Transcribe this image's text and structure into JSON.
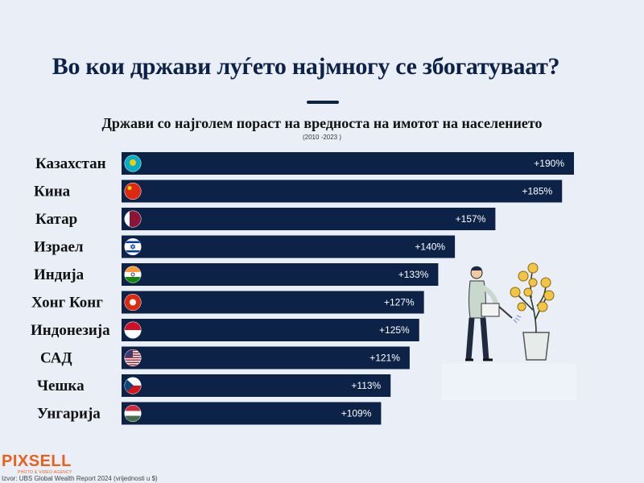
{
  "header": {
    "title": "Во кои држави луѓето најмногу се збогатуваат?",
    "subtitle": "Држави со најголем пораст на вредноста на имотот на населението",
    "period": "(2010 -2023 )"
  },
  "chart_data": {
    "type": "bar",
    "orientation": "horizontal",
    "categories": [
      "Казахстан",
      "Кина",
      "Катар",
      "Израел",
      "Индија",
      "Хонг Конг",
      "Индонезија",
      "САД",
      "Чешка",
      "Унгарија"
    ],
    "values": [
      190,
      185,
      157,
      140,
      133,
      127,
      125,
      121,
      113,
      109
    ],
    "value_labels": [
      "+190%",
      "+185%",
      "+157%",
      "+140%",
      "+133%",
      "+127%",
      "+125%",
      "+121%",
      "+113%",
      "+109%"
    ],
    "flag_icons": [
      "kazakhstan-flag-icon",
      "china-flag-icon",
      "qatar-flag-icon",
      "israel-flag-icon",
      "india-flag-icon",
      "hong-kong-flag-icon",
      "indonesia-flag-icon",
      "usa-flag-icon",
      "czechia-flag-icon",
      "hungary-flag-icon"
    ],
    "bar_color": "#0d2247",
    "grid": false,
    "legend": "none"
  },
  "footer": {
    "logo": "PIXSELL",
    "logo_tagline": "PHOTO & VIDEO AGENCY",
    "source": "Izvor: UBS Global Wealth Report 2024 (vrijednosti u $)"
  },
  "illustration": "man-watering-money-tree-icon"
}
